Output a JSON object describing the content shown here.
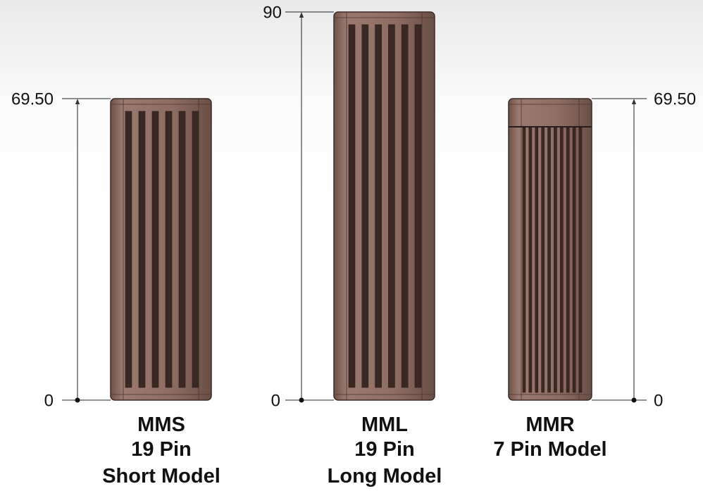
{
  "models": [
    {
      "name": "MMS",
      "pins": "19 Pin",
      "model": "Short Model",
      "top_label": "69.50",
      "bottom_label": "0"
    },
    {
      "name": "MML",
      "pins": "19 Pin",
      "model": "Long Model",
      "top_label": "90",
      "bottom_label": "0"
    },
    {
      "name": "MMR",
      "pins": "7 Pin Model",
      "top_label": "69.50",
      "bottom_label": "0"
    }
  ]
}
